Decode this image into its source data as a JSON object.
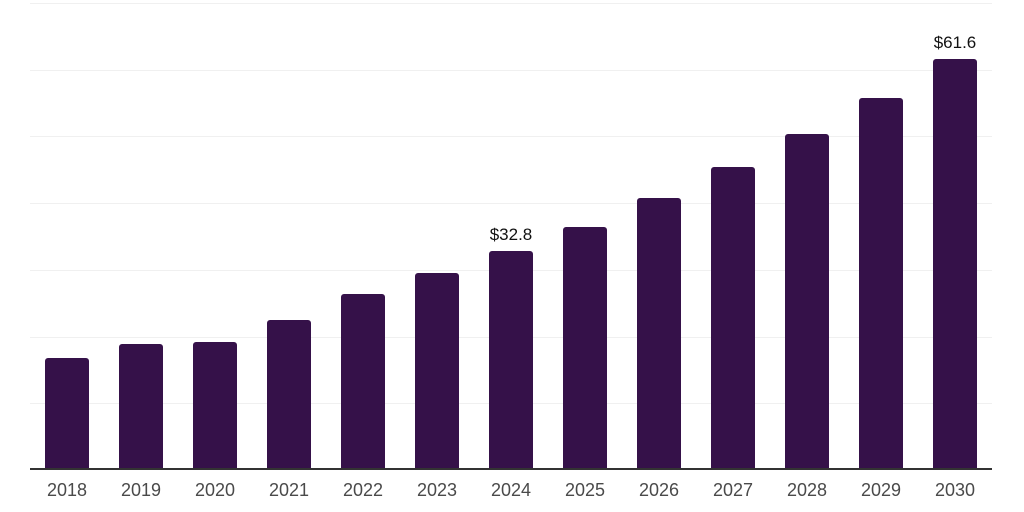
{
  "chart_data": {
    "type": "bar",
    "title": "",
    "xlabel": "",
    "ylabel": "",
    "categories": [
      "2018",
      "2019",
      "2020",
      "2021",
      "2022",
      "2023",
      "2024",
      "2025",
      "2026",
      "2027",
      "2028",
      "2029",
      "2030"
    ],
    "values": [
      16.8,
      18.9,
      19.2,
      22.5,
      26.4,
      29.6,
      32.8,
      36.5,
      40.8,
      45.4,
      50.4,
      55.8,
      61.6
    ],
    "data_labels": [
      "",
      "",
      "",
      "",
      "",
      "",
      "$32.8",
      "",
      "",
      "",
      "",
      "",
      "$61.6"
    ],
    "value_prefix": "$",
    "ylim": [
      0,
      70
    ],
    "gridline_step": 10,
    "grid": true,
    "legend": false,
    "bar_color": "#351149",
    "gridline_color": "#f0f0f0",
    "axis_line_color": "#333333",
    "tick_label_color": "#4a4a4a",
    "data_label_color": "#111111"
  }
}
